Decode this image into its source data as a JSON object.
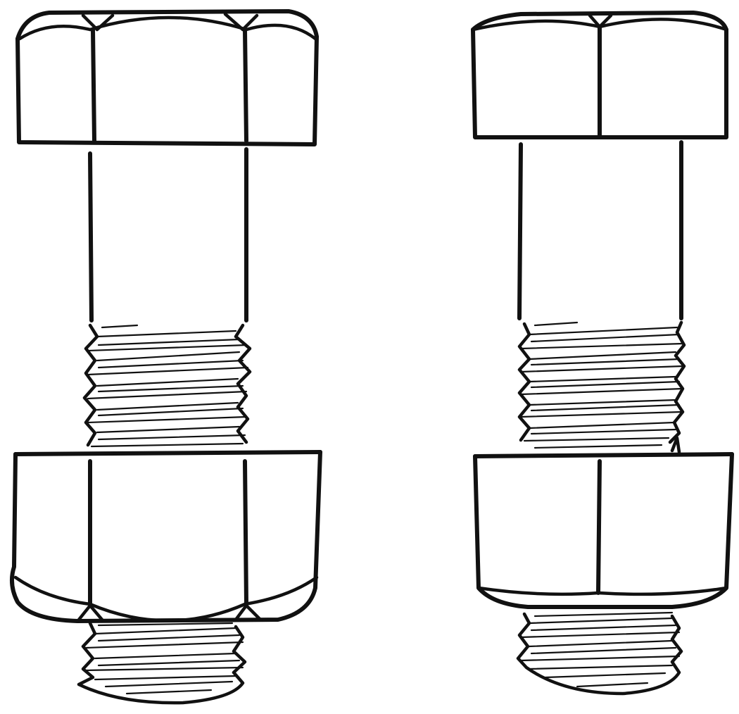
{
  "illustration": {
    "subject": "hex-bolt-with-nut",
    "bolts": [
      {
        "name": "bolt-left",
        "head": "hex-head-chamfered",
        "nut": "hex-nut-chamfered"
      },
      {
        "name": "bolt-right",
        "head": "hex-head-flat",
        "nut": "hex-nut-single-chamfer"
      }
    ],
    "colors": {
      "ink": "#111111",
      "paper": "#ffffff"
    }
  }
}
